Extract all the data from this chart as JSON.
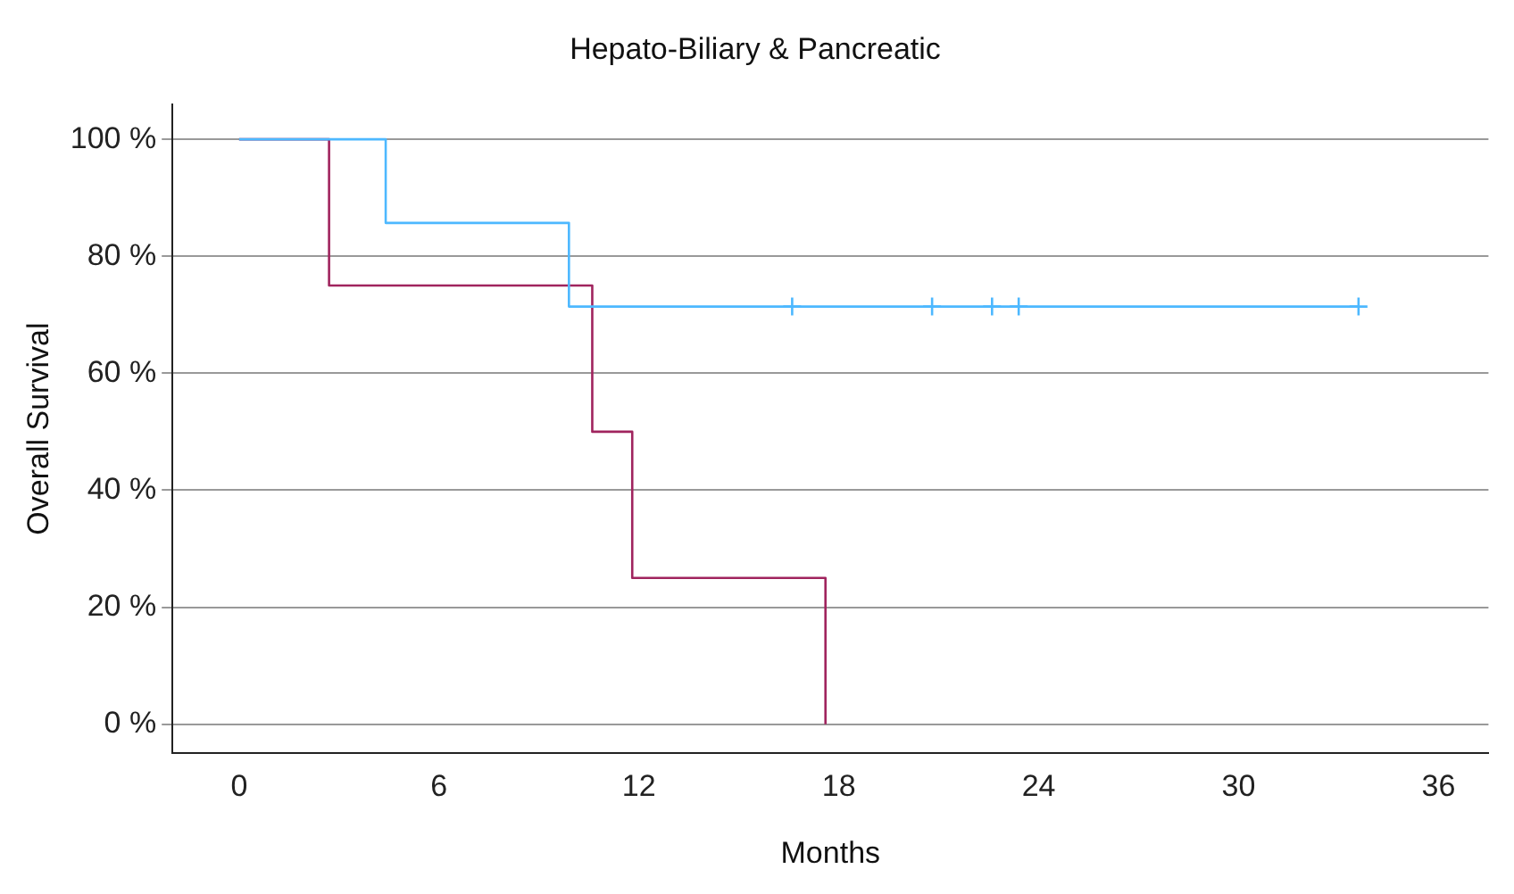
{
  "chart_data": {
    "type": "step",
    "title": "Hepato-Biliary & Pancreatic",
    "xlabel": "Months",
    "ylabel": "Overall Survival",
    "xlim": [
      -2,
      37.5
    ],
    "xticks": [
      0,
      6,
      12,
      18,
      24,
      30,
      36
    ],
    "ylim": [
      -5,
      106
    ],
    "yticks": [
      {
        "value": 0,
        "label": "0 %"
      },
      {
        "value": 20,
        "label": "20 %"
      },
      {
        "value": 40,
        "label": "40 %"
      },
      {
        "value": 60,
        "label": "60 %"
      },
      {
        "value": 80,
        "label": "80 %"
      },
      {
        "value": 100,
        "label": "100 %"
      }
    ],
    "grid": "y",
    "legend": false,
    "series": [
      {
        "color": "#4db8ff",
        "x": [
          0,
          4.4,
          9.9,
          33.6
        ],
        "values": [
          100,
          85.7,
          71.4,
          71.4
        ]
      },
      {
        "color": "#a0245e",
        "x": [
          0,
          2.7,
          10.6,
          11.8,
          17.6
        ],
        "values": [
          100,
          75,
          50,
          25,
          0
        ]
      },
      {
        "type": "scatter",
        "marker": "cross",
        "color": "#4db8ff",
        "x": [
          16.6,
          20.8,
          22.6,
          23.4,
          33.6
        ],
        "values": [
          71.4,
          71.4,
          71.4,
          71.4,
          71.4
        ]
      }
    ]
  }
}
